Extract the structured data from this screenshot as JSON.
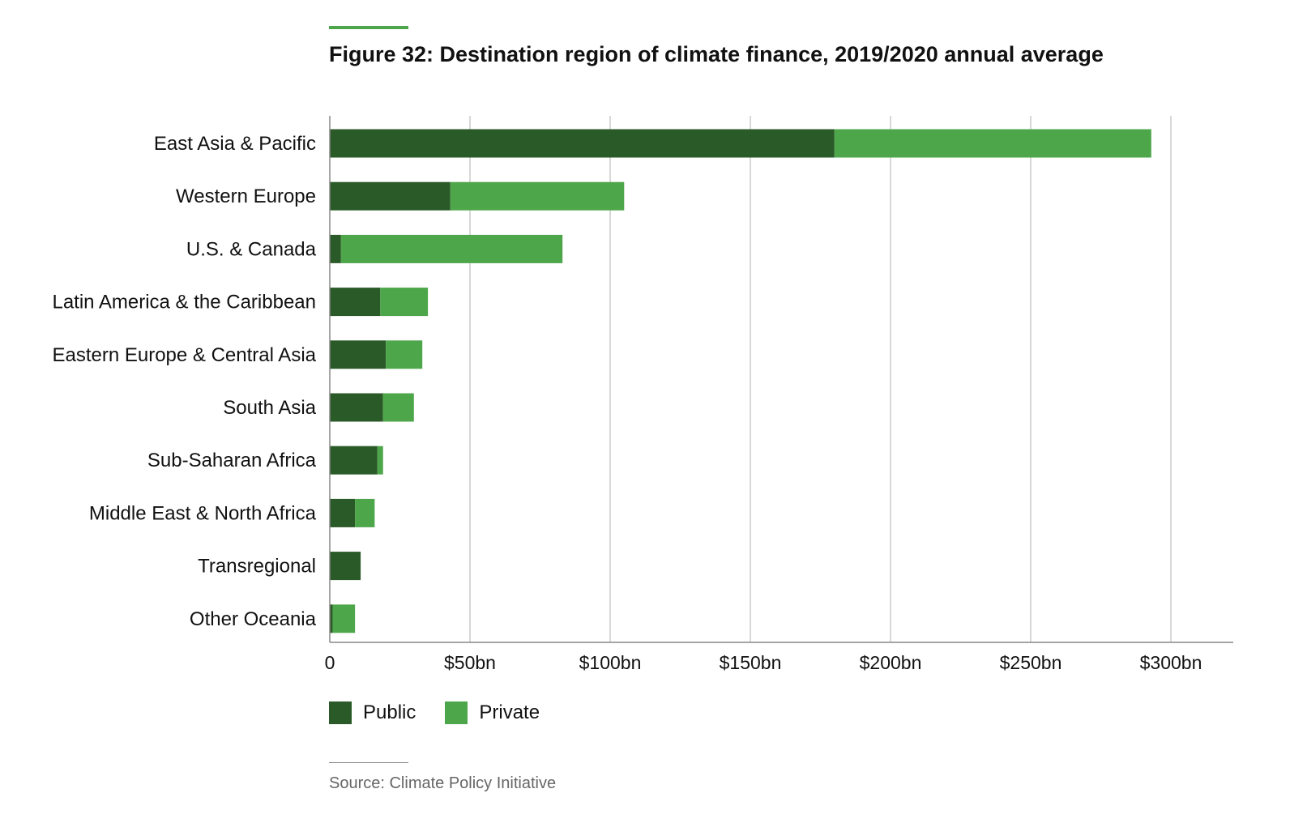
{
  "figure": {
    "title": "Figure 32: Destination region of climate finance, 2019/2020 annual average",
    "source": "Source: Climate Policy Initiative"
  },
  "colors": {
    "public": "#2a5a28",
    "private": "#4ea64a",
    "accent": "#4ea64a",
    "grid": "#cccccc",
    "axis": "#888888"
  },
  "chart_data": {
    "type": "bar",
    "orientation": "horizontal",
    "stacked": true,
    "title": "Figure 32: Destination region of climate finance, 2019/2020 annual average",
    "xlabel": "",
    "ylabel": "",
    "xlim": [
      0,
      320
    ],
    "x_ticks": [
      0,
      50,
      100,
      150,
      200,
      250,
      300
    ],
    "x_tick_labels": [
      "0",
      "$50bn",
      "$100bn",
      "$150bn",
      "$200bn",
      "$250bn",
      "$300bn"
    ],
    "grid": true,
    "legend_position": "bottom-left",
    "categories": [
      "East Asia & Pacific",
      "Western Europe",
      "U.S. & Canada",
      "Latin America & the Caribbean",
      "Eastern Europe & Central Asia",
      "South Asia",
      "Sub-Saharan Africa",
      "Middle East & North Africa",
      "Transregional",
      "Other Oceania"
    ],
    "series": [
      {
        "name": "Public",
        "color": "#2a5a28",
        "values": [
          180,
          43,
          4,
          18,
          20,
          19,
          17,
          9,
          11,
          1
        ]
      },
      {
        "name": "Private",
        "color": "#4ea64a",
        "values": [
          113,
          62,
          79,
          17,
          13,
          11,
          2,
          7,
          0,
          8
        ]
      }
    ]
  }
}
